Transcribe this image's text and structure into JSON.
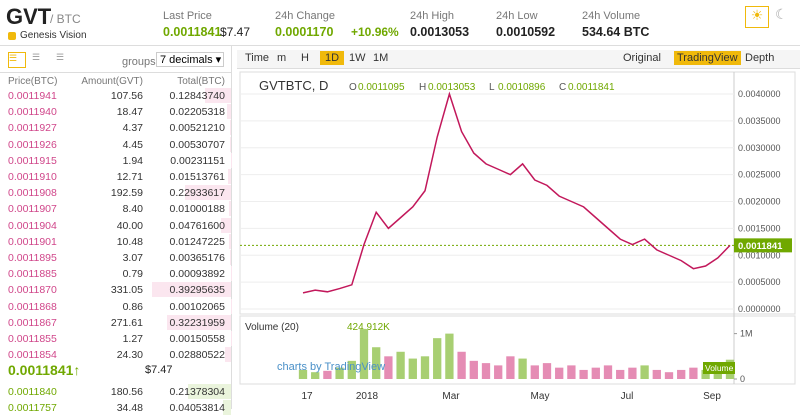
{
  "header": {
    "pair": "GVT",
    "quote": "/ BTC",
    "name": "Genesis Vision",
    "stats": [
      {
        "label": "Last Price",
        "value": "0.0011841",
        "sub": "$7.47"
      },
      {
        "label": "24h Change",
        "value": "0.0001170",
        "sub": "+10.96%"
      },
      {
        "label": "24h High",
        "value": "0.0013053"
      },
      {
        "label": "24h Low",
        "value": "0.0010592"
      },
      {
        "label": "24h Volume",
        "value": "534.64 BTC"
      }
    ]
  },
  "orderbook": {
    "groups_label": "groups",
    "decimals": "7 decimals",
    "columns": [
      "Price(BTC)",
      "Amount(GVT)",
      "Total(BTC)"
    ],
    "asks": [
      [
        "0.0011941",
        "107.56",
        "0.12843740"
      ],
      [
        "0.0011940",
        "18.47",
        "0.02205318"
      ],
      [
        "0.0011927",
        "4.37",
        "0.00521210"
      ],
      [
        "0.0011926",
        "4.45",
        "0.00530707"
      ],
      [
        "0.0011915",
        "1.94",
        "0.00231151"
      ],
      [
        "0.0011910",
        "12.71",
        "0.01513761"
      ],
      [
        "0.0011908",
        "192.59",
        "0.22933617"
      ],
      [
        "0.0011907",
        "8.40",
        "0.01000188"
      ],
      [
        "0.0011904",
        "40.00",
        "0.04761600"
      ],
      [
        "0.0011901",
        "10.48",
        "0.01247225"
      ],
      [
        "0.0011895",
        "3.07",
        "0.00365176"
      ],
      [
        "0.0011885",
        "0.79",
        "0.00093892"
      ],
      [
        "0.0011870",
        "331.05",
        "0.39295635"
      ],
      [
        "0.0011868",
        "0.86",
        "0.00102065"
      ],
      [
        "0.0011867",
        "271.61",
        "0.32231959"
      ],
      [
        "0.0011855",
        "1.27",
        "0.00150558"
      ],
      [
        "0.0011854",
        "24.30",
        "0.02880522"
      ]
    ],
    "last_price": "0.0011841↑",
    "last_usd": "$7.47",
    "bids": [
      [
        "0.0011840",
        "180.56",
        "0.21378304"
      ],
      [
        "0.0011757",
        "34.48",
        "0.04053814"
      ]
    ]
  },
  "chart_panel": {
    "toolbar": [
      "Time",
      "m",
      "H",
      "1D",
      "1W",
      "1M"
    ],
    "active": "1D",
    "tabs": [
      "Original",
      "TradingView",
      "Depth"
    ],
    "active_tab": "TradingView",
    "symbol": "GVTBTC, D",
    "ohlc": [
      {
        "label": "O",
        "value": "0.0011095"
      },
      {
        "label": "H",
        "value": "0.0013053"
      },
      {
        "label": "L",
        "value": "0.0010896"
      },
      {
        "label": "C",
        "value": "0.0011841"
      }
    ],
    "price": {
      "type": "line",
      "color": "#c2185b",
      "values": [
        0.0003,
        0.00035,
        0.00032,
        0.00038,
        0.00045,
        0.0012,
        0.0018,
        0.0015,
        0.0017,
        0.0019,
        0.0022,
        0.0032,
        0.004,
        0.0033,
        0.0029,
        0.0027,
        0.0026,
        0.0025,
        0.0027,
        0.0024,
        0.0023,
        0.0021,
        0.002,
        0.0019,
        0.0017,
        0.0015,
        0.0013,
        0.0012,
        0.0013,
        0.0011,
        0.001,
        0.0009,
        0.00075,
        0.0008,
        0.00095,
        0.0011841
      ],
      "ylim": [
        0,
        0.0042
      ],
      "yticks": [
        {
          "value": 0,
          "label": "0.0000000"
        },
        {
          "value": 0.0005,
          "label": "0.0005000"
        },
        {
          "value": 0.001,
          "label": "0.0010000"
        },
        {
          "value": 0.0015,
          "label": "0.0015000"
        },
        {
          "value": 0.002,
          "label": "0.0020000"
        },
        {
          "value": 0.0025,
          "label": "0.0025000"
        },
        {
          "value": 0.003,
          "label": "0.0030000"
        },
        {
          "value": 0.0035,
          "label": "0.0035000"
        },
        {
          "value": 0.004,
          "label": "0.0040000"
        }
      ],
      "last": {
        "value": 0.0011841,
        "label": "0.0011841"
      },
      "x_labels": [
        "17",
        "2018",
        "Mar",
        "May",
        "Jul",
        "Sep"
      ]
    },
    "volume": {
      "title": "Volume (20)",
      "current": "424.912K",
      "badge": "Volume",
      "watermark": "charts by TradingView",
      "values": [
        200000,
        150000,
        180000,
        250000,
        400000,
        1100000,
        700000,
        500000,
        600000,
        450000,
        500000,
        900000,
        1000000,
        600000,
        400000,
        350000,
        300000,
        500000,
        450000,
        300000,
        350000,
        250000,
        300000,
        200000,
        250000,
        300000,
        200000,
        250000,
        300000,
        200000,
        150000,
        200000,
        250000,
        200000,
        250000,
        424912
      ],
      "ylim": [
        0,
        1300000
      ],
      "yticks": [
        0,
        {
          "value": 1000000,
          "label": "1M"
        }
      ]
    }
  }
}
